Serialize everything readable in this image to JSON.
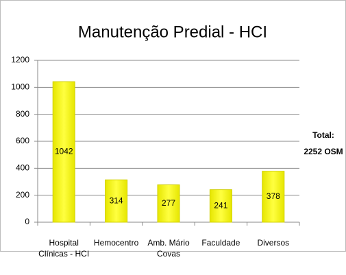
{
  "chart_data": {
    "type": "bar",
    "title": "Manutenção Predial - HCI",
    "categories": [
      "Hospital Clínicas - HCI",
      "Hemocentro",
      "Amb. Mário Covas",
      "Faculdade",
      "Diversos"
    ],
    "values": [
      1042,
      314,
      277,
      241,
      378
    ],
    "color": "#ffff00",
    "ylim": [
      0,
      1200
    ],
    "yticks": [
      0,
      200,
      400,
      600,
      800,
      1000,
      1200
    ],
    "grid": true,
    "annotations": [
      "Total:",
      "2252 OSM"
    ]
  }
}
